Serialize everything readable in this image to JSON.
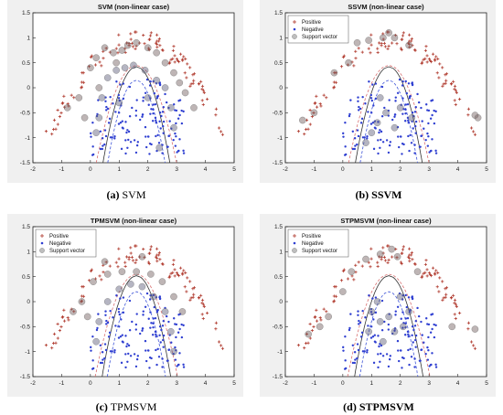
{
  "figure": {
    "panels": [
      {
        "title": "SVM (non-linear case)",
        "caption_letter": "(a)",
        "caption_text": "SVM",
        "caption_bold": true,
        "legend": [
          "Positive",
          "Negative",
          "Support vector"
        ],
        "show_legend": false,
        "sv_positive": [
          [
            -0.8,
            -0.4
          ],
          [
            -0.4,
            -0.2
          ],
          [
            0.2,
            0.6
          ],
          [
            0.5,
            0.8
          ],
          [
            0.8,
            0.7
          ],
          [
            1.1,
            0.75
          ],
          [
            1.3,
            0.85
          ],
          [
            1.6,
            0.9
          ],
          [
            2.0,
            0.8
          ],
          [
            2.3,
            0.7
          ],
          [
            2.6,
            0.5
          ],
          [
            2.9,
            0.3
          ],
          [
            3.3,
            -0.1
          ],
          [
            3.6,
            -0.4
          ],
          [
            0.0,
            0.4
          ],
          [
            0.3,
            0.0
          ],
          [
            3.1,
            0.1
          ],
          [
            -0.2,
            -0.6
          ],
          [
            0.9,
            0.5
          ]
        ],
        "sv_negative": [
          [
            0.3,
            -0.6
          ],
          [
            0.4,
            -0.2
          ],
          [
            0.6,
            0.2
          ],
          [
            0.9,
            0.35
          ],
          [
            1.2,
            0.4
          ],
          [
            1.5,
            0.45
          ],
          [
            1.9,
            0.35
          ],
          [
            2.3,
            0.15
          ],
          [
            2.6,
            0.0
          ],
          [
            2.8,
            -0.4
          ],
          [
            2.9,
            -0.8
          ],
          [
            1.0,
            -0.3
          ],
          [
            2.0,
            -0.2
          ],
          [
            0.2,
            -0.9
          ],
          [
            2.4,
            -1.2
          ]
        ]
      },
      {
        "title": "SSVM (non-linear case)",
        "caption_letter": "(b)",
        "caption_text": "SSVM",
        "caption_bold": true,
        "legend": [
          "Positive",
          "Negative",
          "Support vector"
        ],
        "show_legend": true,
        "sv_positive": [
          [
            -1.4,
            -0.65
          ],
          [
            -1.0,
            -0.5
          ],
          [
            0.5,
            0.9
          ],
          [
            0.9,
            0.95
          ],
          [
            1.4,
            1.0
          ],
          [
            1.6,
            1.1
          ],
          [
            1.8,
            1.0
          ],
          [
            4.6,
            -0.55
          ],
          [
            4.7,
            -0.6
          ],
          [
            2.3,
            0.85
          ],
          [
            -0.3,
            0.3
          ],
          [
            0.2,
            0.5
          ]
        ],
        "sv_negative": [
          [
            1.0,
            -0.9
          ],
          [
            1.2,
            -0.7
          ],
          [
            1.5,
            -0.5
          ],
          [
            2.0,
            -0.4
          ],
          [
            1.8,
            -0.8
          ],
          [
            1.3,
            -0.2
          ],
          [
            2.4,
            -0.6
          ],
          [
            0.8,
            -1.1
          ]
        ]
      },
      {
        "title": "TPMSVM (non-linear case)",
        "caption_letter": "(c)",
        "caption_text": "TPMSVM",
        "caption_bold": false,
        "legend": [
          "Positive",
          "Negative",
          "Support vector"
        ],
        "show_legend": true,
        "sv_positive": [
          [
            -0.6,
            -0.2
          ],
          [
            -0.3,
            0.0
          ],
          [
            0.1,
            0.4
          ],
          [
            0.6,
            0.55
          ],
          [
            1.1,
            0.6
          ],
          [
            1.6,
            0.6
          ],
          [
            2.1,
            0.55
          ],
          [
            2.5,
            0.4
          ],
          [
            2.9,
            0.1
          ],
          [
            3.2,
            -0.2
          ],
          [
            0.5,
            0.8
          ],
          [
            1.8,
            0.9
          ],
          [
            -0.1,
            -0.3
          ]
        ],
        "sv_negative": [
          [
            0.3,
            -0.4
          ],
          [
            0.6,
            0.0
          ],
          [
            1.0,
            0.25
          ],
          [
            1.4,
            0.35
          ],
          [
            1.8,
            0.3
          ],
          [
            2.2,
            0.1
          ],
          [
            2.6,
            -0.2
          ],
          [
            2.8,
            -0.6
          ],
          [
            0.2,
            -0.8
          ],
          [
            2.9,
            -1.0
          ]
        ]
      },
      {
        "title": "STPMSVM (non-linear case)",
        "caption_letter": "(d)",
        "caption_text": "STPMSVM",
        "caption_bold": true,
        "legend": [
          "Positive",
          "Negative",
          "Support vector"
        ],
        "show_legend": true,
        "sv_positive": [
          [
            -1.2,
            -0.65
          ],
          [
            -0.8,
            -0.5
          ],
          [
            -0.5,
            -0.3
          ],
          [
            0.3,
            0.6
          ],
          [
            0.8,
            0.85
          ],
          [
            1.3,
            0.95
          ],
          [
            1.7,
            1.05
          ],
          [
            1.9,
            0.9
          ],
          [
            2.6,
            0.6
          ],
          [
            4.6,
            -0.55
          ],
          [
            3.8,
            -0.5
          ],
          [
            0.0,
            0.2
          ]
        ],
        "sv_negative": [
          [
            1.0,
            -0.2
          ],
          [
            1.3,
            -0.4
          ],
          [
            1.6,
            -0.3
          ],
          [
            1.8,
            -0.6
          ],
          [
            2.1,
            -0.5
          ],
          [
            1.4,
            -0.8
          ],
          [
            2.3,
            -0.2
          ],
          [
            0.9,
            -0.6
          ],
          [
            1.2,
            0.0
          ],
          [
            2.0,
            0.1
          ]
        ]
      }
    ]
  },
  "chart_data": [
    {
      "type": "scatter",
      "title": "SVM (non-linear case)",
      "xlim": [
        -2,
        5
      ],
      "ylim": [
        -1.5,
        1.5
      ],
      "xticks": [
        -2,
        -1,
        0,
        1,
        2,
        3,
        4,
        5
      ],
      "yticks": [
        -1.5,
        -1,
        -0.5,
        0,
        0.5,
        1,
        1.5
      ],
      "series": [
        {
          "name": "Positive",
          "color": "#c0392b"
        },
        {
          "name": "Negative",
          "color": "#2f3fd1"
        },
        {
          "name": "Support vector",
          "color": "#888888"
        }
      ]
    },
    {
      "type": "scatter",
      "title": "SSVM (non-linear case)",
      "xlim": [
        -2,
        5
      ],
      "ylim": [
        -1.5,
        1.5
      ],
      "xticks": [
        -2,
        -1,
        0,
        1,
        2,
        3,
        4,
        5
      ],
      "yticks": [
        -1.5,
        -1,
        -0.5,
        0,
        0.5,
        1,
        1.5
      ],
      "series": [
        {
          "name": "Positive",
          "color": "#c0392b"
        },
        {
          "name": "Negative",
          "color": "#2f3fd1"
        },
        {
          "name": "Support vector",
          "color": "#888888"
        }
      ]
    },
    {
      "type": "scatter",
      "title": "TPMSVM (non-linear case)",
      "xlim": [
        -2,
        5
      ],
      "ylim": [
        -1.5,
        1.5
      ],
      "xticks": [
        -2,
        -1,
        0,
        1,
        2,
        3,
        4,
        5
      ],
      "yticks": [
        -1.5,
        -1,
        -0.5,
        0,
        0.5,
        1,
        1.5
      ],
      "series": [
        {
          "name": "Positive",
          "color": "#c0392b"
        },
        {
          "name": "Negative",
          "color": "#2f3fd1"
        },
        {
          "name": "Support vector",
          "color": "#888888"
        }
      ]
    },
    {
      "type": "scatter",
      "title": "STPMSVM (non-linear case)",
      "xlim": [
        -2,
        5
      ],
      "ylim": [
        -1.5,
        1.5
      ],
      "xticks": [
        -2,
        -1,
        0,
        1,
        2,
        3,
        4,
        5
      ],
      "yticks": [
        -1.5,
        -1,
        -0.5,
        0,
        0.5,
        1,
        1.5
      ],
      "series": [
        {
          "name": "Positive",
          "color": "#c0392b"
        },
        {
          "name": "Negative",
          "color": "#2f3fd1"
        },
        {
          "name": "Support vector",
          "color": "#888888"
        }
      ]
    }
  ]
}
